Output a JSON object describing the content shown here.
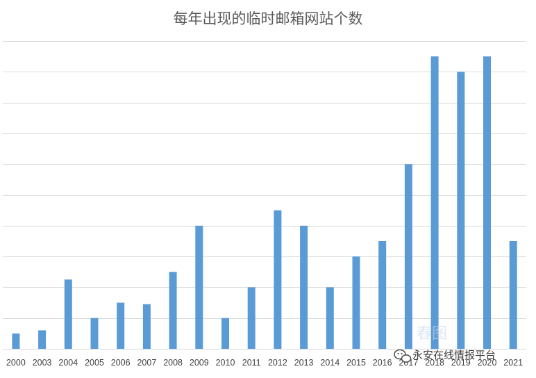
{
  "chart_data": {
    "type": "bar",
    "title": "每年出现的临时邮箱网站个数",
    "xlabel": "",
    "ylabel": "",
    "categories": [
      "2000",
      "2003",
      "2004",
      "2005",
      "2006",
      "2007",
      "2008",
      "2009",
      "2010",
      "2011",
      "2012",
      "2013",
      "2014",
      "2015",
      "2016",
      "2017",
      "2018",
      "2019",
      "2020",
      "2021"
    ],
    "series": [
      {
        "values": [
          1,
          1.2,
          4.5,
          2,
          3,
          2.9,
          5,
          8,
          2,
          4,
          9,
          8,
          4,
          6,
          7,
          12,
          19,
          18,
          19,
          7
        ]
      }
    ],
    "ylim": [
      0,
      20
    ],
    "gridlines": 10,
    "y_tick_labels_shown": false,
    "legend": "none",
    "bar_color": "#5b9bd5"
  },
  "watermark": {
    "text": "永安在线情报平台",
    "faint_text": "春图",
    "icon": "wechat-icon"
  }
}
